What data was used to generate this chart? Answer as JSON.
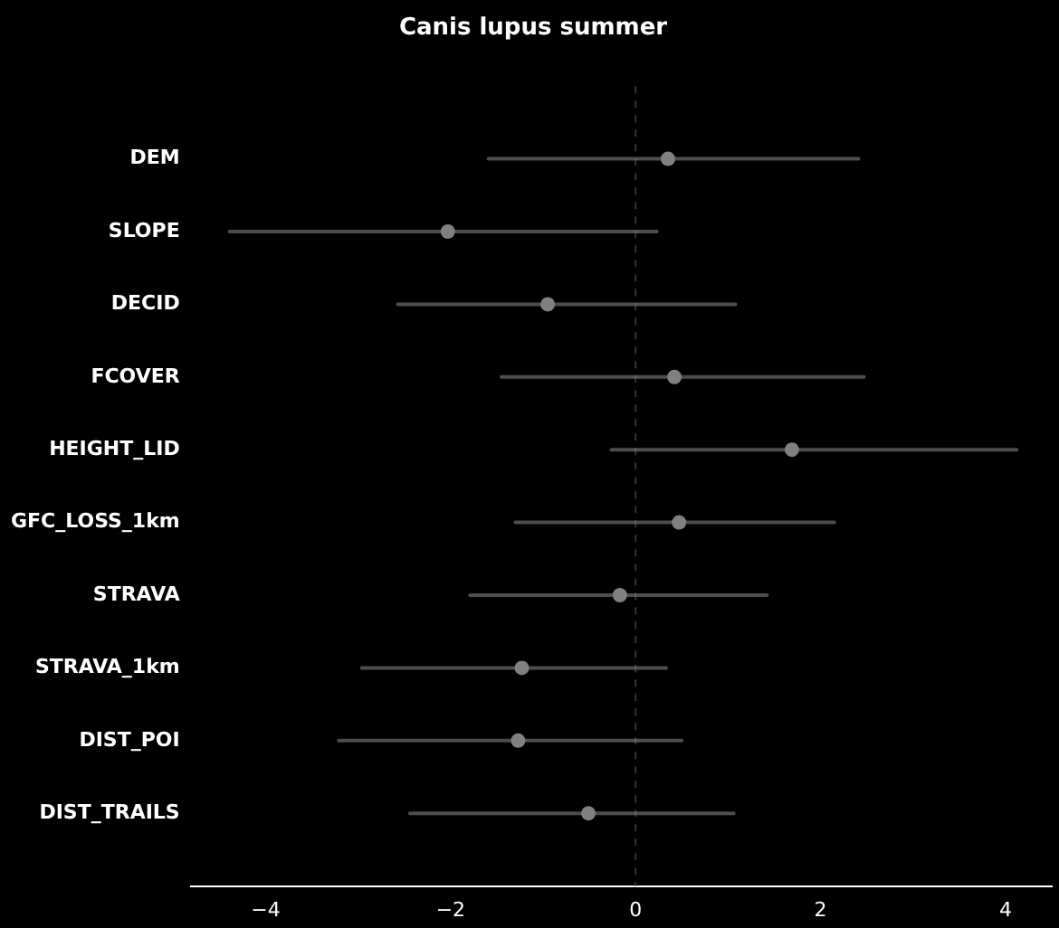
{
  "chart_data": {
    "type": "scatter",
    "orientation": "horizontal",
    "title": "Canis lupus summer",
    "categories": [
      "DEM",
      "SLOPE",
      "DECID",
      "FCOVER",
      "HEIGHT_LID",
      "GFC_LOSS_1km",
      "STRAVA",
      "STRAVA_1km",
      "DIST_POI",
      "DIST_TRAILS"
    ],
    "values": [
      0.35,
      -2.03,
      -0.95,
      0.42,
      1.69,
      0.47,
      -0.17,
      -1.23,
      -1.27,
      -0.51
    ],
    "errors": [
      [
        -1.59,
        2.41
      ],
      [
        -4.39,
        0.23
      ],
      [
        -2.57,
        1.08
      ],
      [
        -1.45,
        2.47
      ],
      [
        -0.26,
        4.12
      ],
      [
        -1.3,
        2.15
      ],
      [
        -1.79,
        1.42
      ],
      [
        -2.96,
        0.33
      ],
      [
        -3.21,
        0.5
      ],
      [
        -2.44,
        1.06
      ]
    ],
    "color": "#808080",
    "marker": "circle",
    "grid": false,
    "xlim": [
      -4.81,
      4.5
    ],
    "xticks": [
      -4,
      -2,
      0,
      2,
      4
    ],
    "ref_lines": [
      {
        "axis": "x",
        "value": 0,
        "color": "#333333",
        "line_style": "dashed"
      }
    ]
  }
}
